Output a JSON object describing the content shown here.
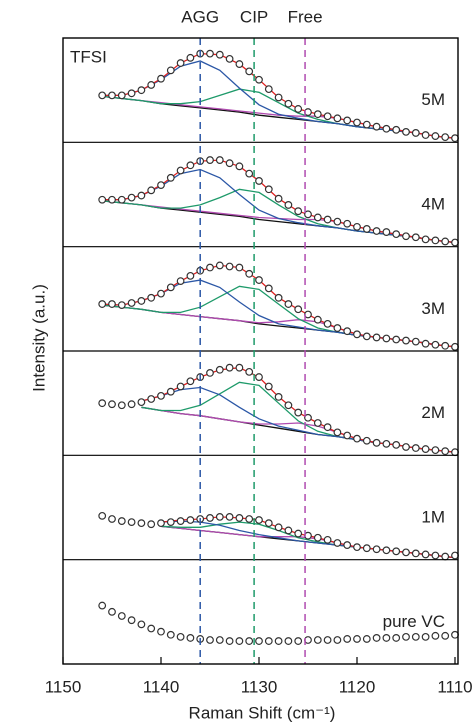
{
  "chart_data": {
    "type": "stacked_spectra",
    "xlabel": "Raman Shift (cm⁻¹)",
    "ylabel": "Intensity (a.u.)",
    "corner_label": "TFSI",
    "xlim": [
      1150,
      1110
    ],
    "xticks": [
      1150,
      1140,
      1130,
      1120,
      1110
    ],
    "point_color": "#333333",
    "annotations": [
      {
        "label": "AGG",
        "x": 1136,
        "color": "#2b57a6"
      },
      {
        "label": "CIP",
        "x": 1130.5,
        "color": "#1e9a6a"
      },
      {
        "label": "Free",
        "x": 1125.3,
        "color": "#b04bb0"
      }
    ],
    "x": [
      1146,
      1145,
      1144,
      1143,
      1142,
      1141,
      1140,
      1139,
      1138,
      1137,
      1136,
      1135,
      1134,
      1133,
      1132,
      1131,
      1130,
      1129,
      1128,
      1127,
      1126,
      1125,
      1124,
      1123,
      1122,
      1121,
      1120,
      1119,
      1118,
      1117,
      1116,
      1115,
      1114,
      1113,
      1112,
      1111,
      1110
    ],
    "fit_x": [
      1146,
      1144,
      1142,
      1140,
      1138,
      1136,
      1134,
      1132,
      1130,
      1128,
      1126,
      1124,
      1122,
      1120,
      1118,
      1116,
      1114,
      1112,
      1110
    ],
    "panels": [
      {
        "label": "5M",
        "ylim": [
          0,
          100
        ],
        "points": [
          45,
          45,
          45,
          47,
          50,
          55,
          61,
          69,
          76,
          81,
          85,
          85,
          84,
          80,
          75,
          68,
          60,
          51,
          43,
          37,
          32,
          29,
          27,
          25,
          23,
          21,
          19,
          17,
          15,
          13,
          12,
          10,
          9,
          7,
          6,
          5,
          4
        ],
        "lines": [
          {
            "color": "#111111",
            "values": [
              44,
              42,
              40,
              37,
              35,
              33,
              31,
              29,
              26,
              24,
              22,
              20,
              18,
              15,
              13,
              11,
              9,
              6,
              4
            ]
          },
          {
            "color": "#b04bb0",
            "values": [
              44,
              42,
              40,
              38,
              36,
              34,
              32,
              30,
              28,
              26,
              25,
              25,
              23,
              19,
              15,
              12,
              9,
              6,
              4
            ]
          },
          {
            "color": "#1e9a6a",
            "values": [
              44,
              42,
              40,
              37,
              37,
              39,
              45,
              51,
              48,
              38,
              28,
              22,
              18,
              15,
              13,
              11,
              9,
              6,
              4
            ]
          },
          {
            "color": "#2b57a6",
            "values": [
              45,
              45,
              50,
              60,
              73,
              78,
              69,
              52,
              36,
              27,
              23,
              20,
              18,
              15,
              13,
              11,
              9,
              6,
              4
            ]
          },
          {
            "color": "#e02020",
            "values": [
              45,
              45,
              50,
              61,
              76,
              85,
              84,
              75,
              60,
              43,
              32,
              27,
              23,
              19,
              15,
              12,
              9,
              6,
              4
            ]
          }
        ]
      },
      {
        "label": "4M",
        "ylim": [
          0,
          100
        ],
        "points": [
          45,
          45,
          45,
          47,
          49,
          54,
          59,
          66,
          73,
          78,
          82,
          83,
          83,
          80,
          77,
          70,
          63,
          55,
          46,
          40,
          34,
          31,
          28,
          26,
          24,
          22,
          19,
          17,
          15,
          14,
          12,
          10,
          9,
          7,
          6,
          5,
          4
        ],
        "lines": [
          {
            "color": "#111111",
            "values": [
              44,
              42,
              40,
              37,
              35,
              33,
              31,
              29,
              26,
              24,
              22,
              20,
              18,
              15,
              13,
              11,
              9,
              6,
              4
            ]
          },
          {
            "color": "#b04bb0",
            "values": [
              44,
              42,
              40,
              38,
              36,
              34,
              32,
              30,
              28,
              27,
              26,
              26,
              24,
              19,
              15,
              12,
              9,
              6,
              4
            ]
          },
          {
            "color": "#1e9a6a",
            "values": [
              44,
              42,
              40,
              37,
              37,
              40,
              47,
              55,
              52,
              40,
              29,
              22,
              18,
              15,
              13,
              11,
              9,
              6,
              4
            ]
          },
          {
            "color": "#2b57a6",
            "values": [
              45,
              45,
              49,
              58,
              70,
              74,
              66,
              50,
              35,
              27,
              23,
              20,
              18,
              15,
              13,
              11,
              9,
              6,
              4
            ]
          },
          {
            "color": "#e02020",
            "values": [
              45,
              45,
              49,
              59,
              73,
              82,
              83,
              77,
              63,
              46,
              34,
              28,
              24,
              19,
              15,
              12,
              9,
              6,
              4
            ]
          }
        ]
      },
      {
        "label": "3M",
        "ylim": [
          0,
          100
        ],
        "points": [
          45,
          45,
          44,
          46,
          48,
          51,
          55,
          61,
          67,
          72,
          77,
          80,
          82,
          81,
          80,
          74,
          68,
          60,
          51,
          45,
          40,
          35,
          30,
          26,
          22,
          19,
          16,
          14,
          13,
          12,
          11,
          10,
          9,
          7,
          6,
          5,
          4
        ],
        "lines": [
          {
            "color": "#111111",
            "values": [
              44,
              42,
              40,
              37,
              35,
              33,
              31,
              29,
              26,
              24,
              22,
              20,
              18,
              15,
              13,
              11,
              9,
              6,
              4
            ]
          },
          {
            "color": "#b04bb0",
            "values": [
              44,
              42,
              40,
              37,
              35,
              33,
              31,
              29,
              27,
              28,
              30,
              28,
              22,
              16,
              13,
              11,
              9,
              6,
              4
            ]
          },
          {
            "color": "#1e9a6a",
            "values": [
              44,
              42,
              40,
              37,
              37,
              42,
              52,
              62,
              59,
              45,
              31,
              22,
              18,
              15,
              13,
              11,
              9,
              6,
              4
            ]
          },
          {
            "color": "#2b57a6",
            "values": [
              45,
              44,
              48,
              55,
              65,
              68,
              61,
              47,
              34,
              26,
              23,
              20,
              18,
              15,
              13,
              11,
              9,
              6,
              4
            ]
          },
          {
            "color": "#e02020",
            "values": [
              45,
              44,
              48,
              55,
              67,
              77,
              82,
              80,
              68,
              51,
              40,
              30,
              22,
              16,
              13,
              11,
              9,
              6,
              4
            ]
          }
        ]
      },
      {
        "label": "2M",
        "ylim": [
          0,
          100
        ],
        "points": [
          50,
          49,
          48,
          49,
          51,
          54,
          57,
          61,
          66,
          71,
          75,
          79,
          82,
          84,
          84,
          80,
          75,
          66,
          56,
          48,
          41,
          36,
          31,
          27,
          22,
          19,
          16,
          14,
          12,
          11,
          10,
          8,
          7,
          6,
          5,
          4,
          3
        ],
        "lines": [
          {
            "color": "#111111",
            "values": [
              null,
              null,
              46,
              43,
              40,
              38,
              35,
              32,
              29,
              26,
              23,
              20,
              18,
              15,
              12,
              10,
              7,
              5,
              3
            ]
          },
          {
            "color": "#b04bb0",
            "values": [
              null,
              null,
              46,
              43,
              40,
              38,
              35,
              32,
              30,
              30,
              31,
              28,
              22,
              16,
              12,
              10,
              7,
              5,
              3
            ]
          },
          {
            "color": "#1e9a6a",
            "values": [
              null,
              null,
              46,
              43,
              43,
              48,
              59,
              70,
              67,
              50,
              33,
              23,
              18,
              15,
              12,
              10,
              7,
              5,
              3
            ]
          },
          {
            "color": "#2b57a6",
            "values": [
              null,
              null,
              52,
              57,
              63,
              65,
              58,
              46,
              35,
              28,
              24,
              20,
              18,
              15,
              12,
              10,
              7,
              5,
              3
            ]
          },
          {
            "color": "#e02020",
            "values": [
              null,
              null,
              52,
              57,
              66,
              75,
              82,
              84,
              75,
              56,
              41,
              31,
              22,
              16,
              12,
              10,
              7,
              5,
              3
            ]
          }
        ]
      },
      {
        "label": "1M",
        "ylim": [
          0,
          100
        ],
        "points": [
          42,
          39,
          37,
          36,
          35,
          34,
          35,
          36,
          37,
          38,
          39,
          40,
          41,
          41,
          40,
          39,
          38,
          35,
          31,
          28,
          25,
          23,
          21,
          19,
          16,
          14,
          12,
          11,
          10,
          9,
          8,
          7,
          6,
          5,
          4,
          3,
          4
        ],
        "lines": [
          {
            "color": "#111111",
            "values": [
              null,
              null,
              null,
              32,
              30,
              28,
              26,
              24,
              22,
              20,
              18,
              16,
              14,
              12,
              10,
              8,
              6,
              4,
              2
            ]
          },
          {
            "color": "#b04bb0",
            "values": [
              null,
              null,
              null,
              32,
              30,
              28,
              26,
              24,
              22,
              22,
              22,
              20,
              16,
              12,
              10,
              8,
              6,
              4,
              2
            ]
          },
          {
            "color": "#1e9a6a",
            "values": [
              null,
              null,
              null,
              32,
              31,
              31,
              34,
              36,
              34,
              28,
              21,
              17,
              14,
              12,
              10,
              8,
              6,
              4,
              2
            ]
          },
          {
            "color": "#2b57a6",
            "values": [
              null,
              null,
              null,
              36,
              37,
              36,
              33,
              28,
              24,
              21,
              18,
              16,
              14,
              12,
              10,
              8,
              6,
              4,
              2
            ]
          },
          {
            "color": "#e02020",
            "values": [
              null,
              null,
              null,
              36,
              38,
              39,
              41,
              40,
              38,
              31,
              25,
              21,
              16,
              12,
              10,
              8,
              6,
              4,
              2
            ]
          }
        ]
      },
      {
        "label": "pure VC",
        "ylim": [
          0,
          100
        ],
        "points": [
          56,
          50,
          46,
          42,
          38,
          34,
          31,
          28,
          26,
          25,
          24,
          23,
          23,
          22,
          22,
          22,
          22,
          22,
          22,
          22,
          22,
          23,
          23,
          23,
          23,
          24,
          24,
          24,
          25,
          25,
          25,
          26,
          26,
          26,
          27,
          27,
          28
        ],
        "lines": []
      }
    ]
  }
}
